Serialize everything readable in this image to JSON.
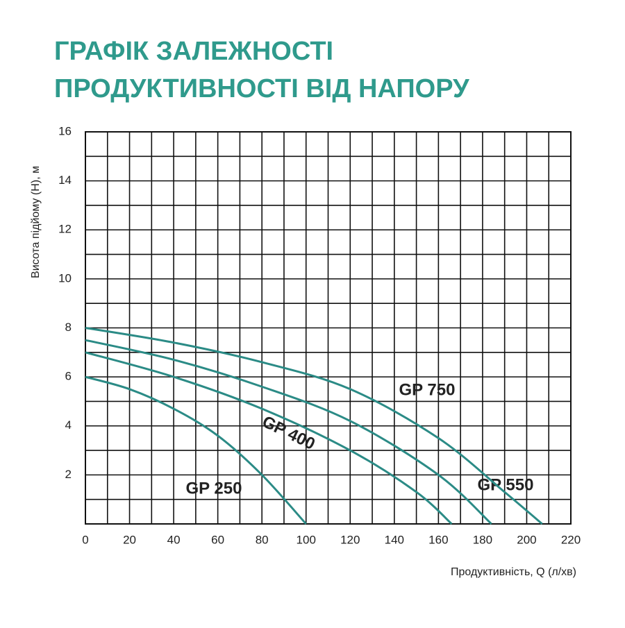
{
  "chart_data": {
    "type": "line",
    "title": [
      "ГРАФІК ЗАЛЕЖНОСТІ",
      "ПРОДУКТИВНОСТІ ВІД НАПОРУ"
    ],
    "x_label": "Продуктивність, Q (л/хв)",
    "y_label": "Висота підйому (H), м",
    "xlim": [
      0,
      220
    ],
    "xticks": [
      0,
      20,
      40,
      60,
      80,
      100,
      120,
      140,
      160,
      180,
      200,
      220
    ],
    "ylim": [
      0,
      16
    ],
    "yticks": [
      2,
      4,
      6,
      8,
      10,
      12,
      14,
      16
    ],
    "grid": true,
    "series": [
      {
        "name": "GP 250",
        "color": "#2b8b86",
        "x": [
          0,
          20,
          40,
          60,
          80,
          100
        ],
        "values": [
          6,
          5.5,
          4.7,
          3.6,
          2,
          0
        ]
      },
      {
        "name": "GP 400",
        "color": "#2b8b86",
        "x": [
          0,
          40,
          80,
          120,
          150,
          166
        ],
        "values": [
          7,
          6,
          4.7,
          3,
          1.3,
          0
        ]
      },
      {
        "name": "GP 550",
        "color": "#2b8b86",
        "x": [
          0,
          40,
          80,
          120,
          160,
          184
        ],
        "values": [
          7.5,
          6.7,
          5.6,
          4.2,
          2,
          0
        ]
      },
      {
        "name": "GP 750",
        "color": "#2b8b86",
        "x": [
          0,
          40,
          80,
          120,
          160,
          190,
          207
        ],
        "values": [
          8,
          7.4,
          6.6,
          5.5,
          3.5,
          1.3,
          0
        ]
      }
    ]
  }
}
